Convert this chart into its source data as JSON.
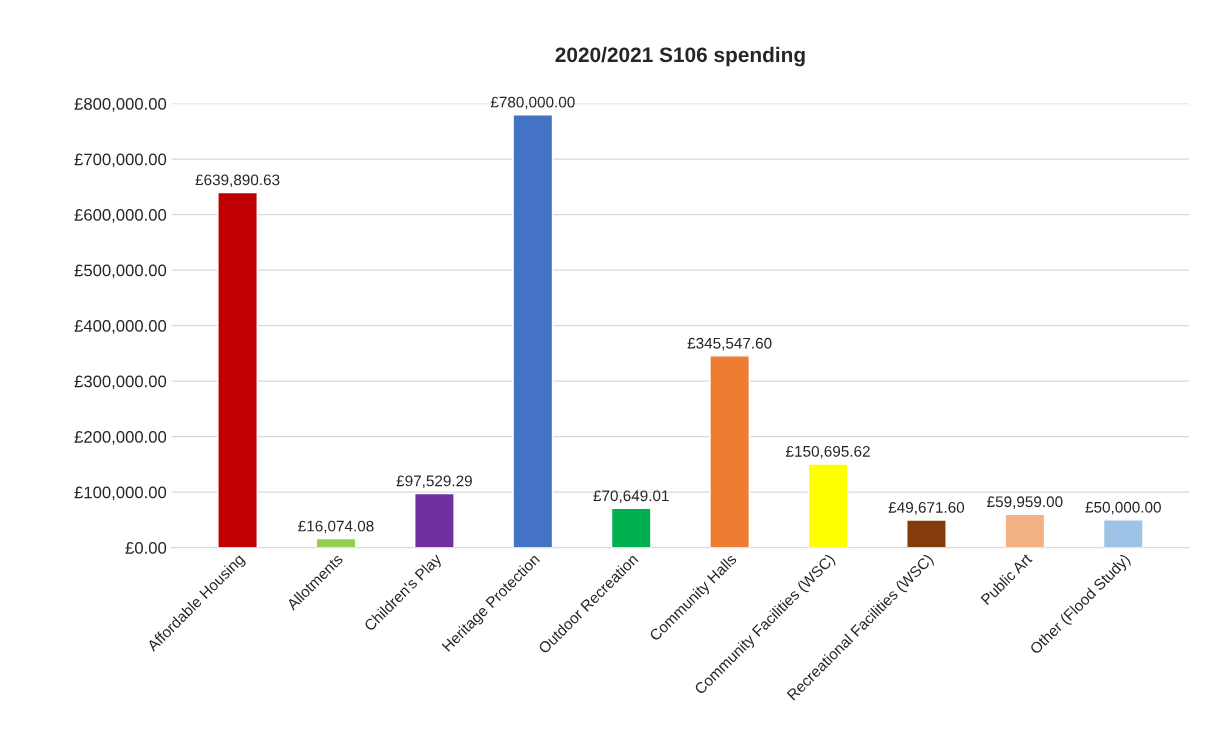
{
  "chart_data": {
    "type": "bar",
    "title": "2020/2021 S106 spending",
    "categories": [
      "Affordable Housing",
      "Allotments",
      "Children's Play",
      "Heritage Protection",
      "Outdoor Recreation",
      "Community Halls",
      "Community Facilities (WSC)",
      "Recreational Facilities (WSC)",
      "Public Art",
      "Other (Flood Study)"
    ],
    "values": [
      639890.63,
      16074.08,
      97529.29,
      780000.0,
      70649.01,
      345547.6,
      150695.62,
      49671.6,
      59959.0,
      50000.0
    ],
    "colors": [
      "#c00000",
      "#92d050",
      "#7030a0",
      "#4472c4",
      "#00b050",
      "#ed7d31",
      "#ffff00",
      "#843c0c",
      "#f4b183",
      "#9dc3e6"
    ],
    "value_labels": [
      "£639,890.63",
      "£16,074.08",
      "£97,529.29",
      "£780,000.00",
      "£70,649.01",
      "£345,547.60",
      "£150,695.62",
      "£49,671.60",
      "£59,959.00",
      "£50,000.00"
    ],
    "ylim": [
      0,
      800000
    ],
    "yticks": [
      {
        "value": 0,
        "label": "£0.00"
      },
      {
        "value": 100000,
        "label": "£100,000.00"
      },
      {
        "value": 200000,
        "label": "£200,000.00"
      },
      {
        "value": 300000,
        "label": "£300,000.00"
      },
      {
        "value": 400000,
        "label": "£400,000.00"
      },
      {
        "value": 500000,
        "label": "£500,000.00"
      },
      {
        "value": 600000,
        "label": "£600,000.00"
      },
      {
        "value": 700000,
        "label": "£700,000.00"
      },
      {
        "value": 800000,
        "label": "£800,000.00"
      }
    ],
    "grid": "y"
  }
}
